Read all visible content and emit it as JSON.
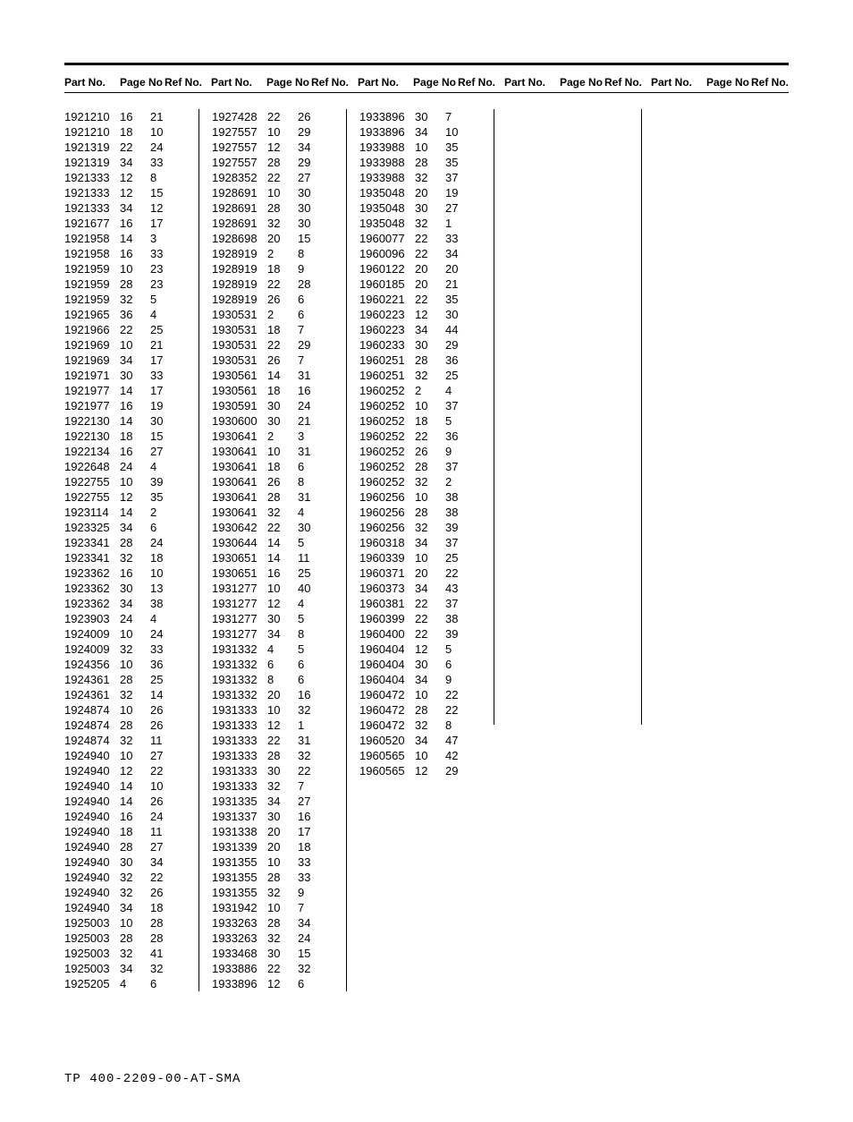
{
  "headers": {
    "partno": "Part No.",
    "pageno": "Page No",
    "refno": "Ref No."
  },
  "footer": "TP 400-2209-00-AT-SMA",
  "columns": [
    [
      [
        "1921210",
        "16",
        "21"
      ],
      [
        "1921210",
        "18",
        "10"
      ],
      [
        "1921319",
        "22",
        "24"
      ],
      [
        "1921319",
        "34",
        "33"
      ],
      [
        "1921333",
        "12",
        "8"
      ],
      [
        "1921333",
        "12",
        "15"
      ],
      [
        "1921333",
        "34",
        "12"
      ],
      [
        "1921677",
        "16",
        "17"
      ],
      [
        "1921958",
        "14",
        "3"
      ],
      [
        "1921958",
        "16",
        "33"
      ],
      [
        "1921959",
        "10",
        "23"
      ],
      [
        "1921959",
        "28",
        "23"
      ],
      [
        "1921959",
        "32",
        "5"
      ],
      [
        "1921965",
        "36",
        "4"
      ],
      [
        "1921966",
        "22",
        "25"
      ],
      [
        "1921969",
        "10",
        "21"
      ],
      [
        "1921969",
        "34",
        "17"
      ],
      [
        "1921971",
        "30",
        "33"
      ],
      [
        "1921977",
        "14",
        "17"
      ],
      [
        "1921977",
        "16",
        "19"
      ],
      [
        "1922130",
        "14",
        "30"
      ],
      [
        "1922130",
        "18",
        "15"
      ],
      [
        "1922134",
        "16",
        "27"
      ],
      [
        "1922648",
        "24",
        "4"
      ],
      [
        "1922755",
        "10",
        "39"
      ],
      [
        "1922755",
        "12",
        "35"
      ],
      [
        "1923114",
        "14",
        "2"
      ],
      [
        "1923325",
        "34",
        "6"
      ],
      [
        "1923341",
        "28",
        "24"
      ],
      [
        "1923341",
        "32",
        "18"
      ],
      [
        "1923362",
        "16",
        "10"
      ],
      [
        "1923362",
        "30",
        "13"
      ],
      [
        "1923362",
        "34",
        "38"
      ],
      [
        "1923903",
        "24",
        "4"
      ],
      [
        "1924009",
        "10",
        "24"
      ],
      [
        "1924009",
        "32",
        "33"
      ],
      [
        "1924356",
        "10",
        "36"
      ],
      [
        "1924361",
        "28",
        "25"
      ],
      [
        "1924361",
        "32",
        "14"
      ],
      [
        "1924874",
        "10",
        "26"
      ],
      [
        "1924874",
        "28",
        "26"
      ],
      [
        "1924874",
        "32",
        "11"
      ],
      [
        "1924940",
        "10",
        "27"
      ],
      [
        "1924940",
        "12",
        "22"
      ],
      [
        "1924940",
        "14",
        "10"
      ],
      [
        "1924940",
        "14",
        "26"
      ],
      [
        "1924940",
        "16",
        "24"
      ],
      [
        "1924940",
        "18",
        "11"
      ],
      [
        "1924940",
        "28",
        "27"
      ],
      [
        "1924940",
        "30",
        "34"
      ],
      [
        "1924940",
        "32",
        "22"
      ],
      [
        "1924940",
        "32",
        "26"
      ],
      [
        "1924940",
        "34",
        "18"
      ],
      [
        "1925003",
        "10",
        "28"
      ],
      [
        "1925003",
        "28",
        "28"
      ],
      [
        "1925003",
        "32",
        "41"
      ],
      [
        "1925003",
        "34",
        "32"
      ],
      [
        "1925205",
        "4",
        "6"
      ]
    ],
    [
      [
        "1927428",
        "22",
        "26"
      ],
      [
        "1927557",
        "10",
        "29"
      ],
      [
        "1927557",
        "12",
        "34"
      ],
      [
        "1927557",
        "28",
        "29"
      ],
      [
        "1928352",
        "22",
        "27"
      ],
      [
        "1928691",
        "10",
        "30"
      ],
      [
        "1928691",
        "28",
        "30"
      ],
      [
        "1928691",
        "32",
        "30"
      ],
      [
        "1928698",
        "20",
        "15"
      ],
      [
        "1928919",
        "2",
        "8"
      ],
      [
        "1928919",
        "18",
        "9"
      ],
      [
        "1928919",
        "22",
        "28"
      ],
      [
        "1928919",
        "26",
        "6"
      ],
      [
        "1930531",
        "2",
        "6"
      ],
      [
        "1930531",
        "18",
        "7"
      ],
      [
        "1930531",
        "22",
        "29"
      ],
      [
        "1930531",
        "26",
        "7"
      ],
      [
        "1930561",
        "14",
        "31"
      ],
      [
        "1930561",
        "18",
        "16"
      ],
      [
        "1930591",
        "30",
        "24"
      ],
      [
        "1930600",
        "30",
        "21"
      ],
      [
        "1930641",
        "2",
        "3"
      ],
      [
        "1930641",
        "10",
        "31"
      ],
      [
        "1930641",
        "18",
        "6"
      ],
      [
        "1930641",
        "26",
        "8"
      ],
      [
        "1930641",
        "28",
        "31"
      ],
      [
        "1930641",
        "32",
        "4"
      ],
      [
        "1930642",
        "22",
        "30"
      ],
      [
        "1930644",
        "14",
        "5"
      ],
      [
        "1930651",
        "14",
        "11"
      ],
      [
        "1930651",
        "16",
        "25"
      ],
      [
        "1931277",
        "10",
        "40"
      ],
      [
        "1931277",
        "12",
        "4"
      ],
      [
        "1931277",
        "30",
        "5"
      ],
      [
        "1931277",
        "34",
        "8"
      ],
      [
        "1931332",
        "4",
        "5"
      ],
      [
        "1931332",
        "6",
        "6"
      ],
      [
        "1931332",
        "8",
        "6"
      ],
      [
        "1931332",
        "20",
        "16"
      ],
      [
        "1931333",
        "10",
        "32"
      ],
      [
        "1931333",
        "12",
        "1"
      ],
      [
        "1931333",
        "22",
        "31"
      ],
      [
        "1931333",
        "28",
        "32"
      ],
      [
        "1931333",
        "30",
        "22"
      ],
      [
        "1931333",
        "32",
        "7"
      ],
      [
        "1931335",
        "34",
        "27"
      ],
      [
        "1931337",
        "30",
        "16"
      ],
      [
        "1931338",
        "20",
        "17"
      ],
      [
        "1931339",
        "20",
        "18"
      ],
      [
        "1931355",
        "10",
        "33"
      ],
      [
        "1931355",
        "28",
        "33"
      ],
      [
        "1931355",
        "32",
        "9"
      ],
      [
        "1931942",
        "10",
        "7"
      ],
      [
        "1933263",
        "28",
        "34"
      ],
      [
        "1933263",
        "32",
        "24"
      ],
      [
        "1933468",
        "30",
        "15"
      ],
      [
        "1933886",
        "22",
        "32"
      ],
      [
        "1933896",
        "12",
        "6"
      ]
    ],
    [
      [
        "1933896",
        "30",
        "7"
      ],
      [
        "1933896",
        "34",
        "10"
      ],
      [
        "1933988",
        "10",
        "35"
      ],
      [
        "1933988",
        "28",
        "35"
      ],
      [
        "1933988",
        "32",
        "37"
      ],
      [
        "1935048",
        "20",
        "19"
      ],
      [
        "1935048",
        "30",
        "27"
      ],
      [
        "1935048",
        "32",
        "1"
      ],
      [
        "1960077",
        "22",
        "33"
      ],
      [
        "1960096",
        "22",
        "34"
      ],
      [
        "1960122",
        "20",
        "20"
      ],
      [
        "1960185",
        "20",
        "21"
      ],
      [
        "1960221",
        "22",
        "35"
      ],
      [
        "1960223",
        "12",
        "30"
      ],
      [
        "1960223",
        "34",
        "44"
      ],
      [
        "1960233",
        "30",
        "29"
      ],
      [
        "1960251",
        "28",
        "36"
      ],
      [
        "1960251",
        "32",
        "25"
      ],
      [
        "1960252",
        "2",
        "4"
      ],
      [
        "1960252",
        "10",
        "37"
      ],
      [
        "1960252",
        "18",
        "5"
      ],
      [
        "1960252",
        "22",
        "36"
      ],
      [
        "1960252",
        "26",
        "9"
      ],
      [
        "1960252",
        "28",
        "37"
      ],
      [
        "1960252",
        "32",
        "2"
      ],
      [
        "1960256",
        "10",
        "38"
      ],
      [
        "1960256",
        "28",
        "38"
      ],
      [
        "1960256",
        "32",
        "39"
      ],
      [
        "1960318",
        "34",
        "37"
      ],
      [
        "1960339",
        "10",
        "25"
      ],
      [
        "1960371",
        "20",
        "22"
      ],
      [
        "1960373",
        "34",
        "43"
      ],
      [
        "1960381",
        "22",
        "37"
      ],
      [
        "1960399",
        "22",
        "38"
      ],
      [
        "1960400",
        "22",
        "39"
      ],
      [
        "1960404",
        "12",
        "5"
      ],
      [
        "1960404",
        "30",
        "6"
      ],
      [
        "1960404",
        "34",
        "9"
      ],
      [
        "1960472",
        "10",
        "22"
      ],
      [
        "1960472",
        "28",
        "22"
      ],
      [
        "1960472",
        "32",
        "8"
      ],
      [
        "1960520",
        "34",
        "47"
      ],
      [
        "1960565",
        "10",
        "42"
      ],
      [
        "1960565",
        "12",
        "29"
      ]
    ],
    [],
    []
  ]
}
